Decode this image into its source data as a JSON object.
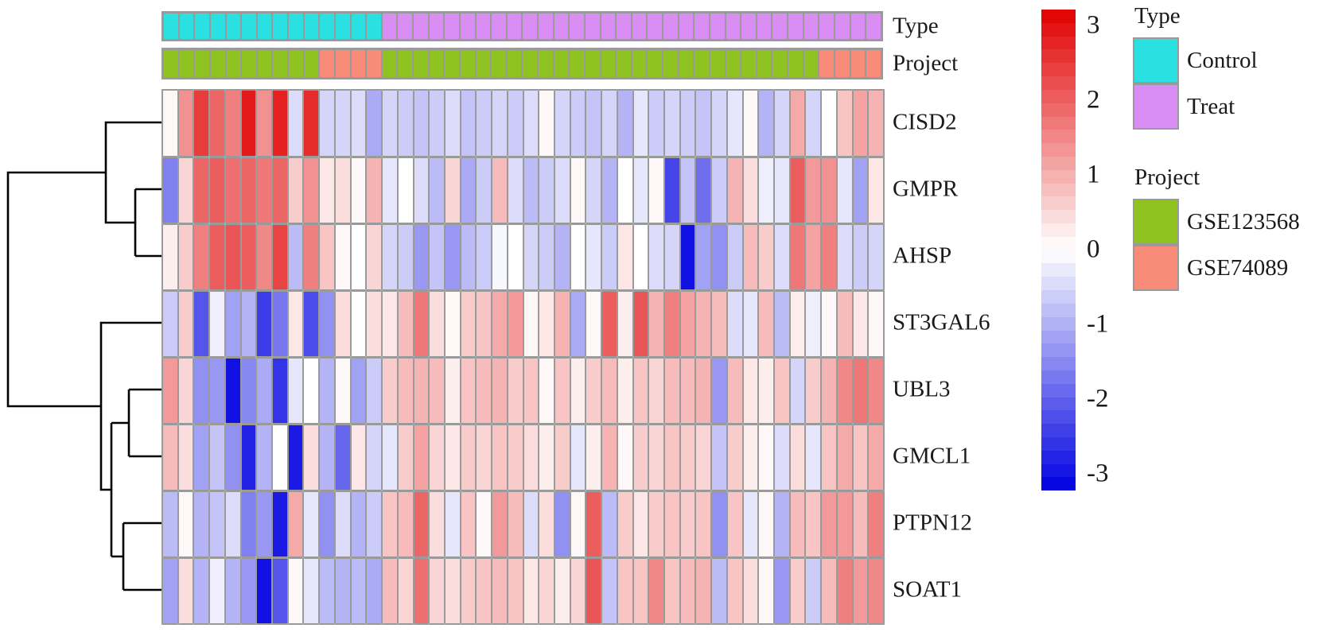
{
  "figure": {
    "annotation_row_labels": {
      "type": "Type",
      "project": "Project"
    },
    "legend": {
      "type_title": "Type",
      "type_items": [
        {
          "label": "Control",
          "color": "#2be0e0"
        },
        {
          "label": "Treat",
          "color": "#d98ef5"
        }
      ],
      "project_title": "Project",
      "project_items": [
        {
          "label": "GSE123568",
          "color": "#8fc31f"
        },
        {
          "label": "GSE74089",
          "color": "#f98c79"
        }
      ]
    }
  },
  "chart_data": {
    "type": "heatmap",
    "rows": [
      "CISD2",
      "GMPR",
      "AHSP",
      "ST3GAL6",
      "UBL3",
      "GMCL1",
      "PTPN12",
      "SOAT1"
    ],
    "n_columns": 46,
    "dendrogram": "left",
    "column_annotations": {
      "type_groups": [
        {
          "label": "Control",
          "count": 14
        },
        {
          "label": "Treat",
          "count": 32
        }
      ],
      "project_groups": [
        {
          "label": "GSE123568",
          "count": 10
        },
        {
          "label": "GSE74089",
          "count": 4
        },
        {
          "label": "GSE123568",
          "count": 28
        },
        {
          "label": "GSE74089",
          "count": 4
        }
      ]
    },
    "annotation_colors": {
      "Control": "#2be0e0",
      "Treat": "#d98ef5",
      "GSE123568": "#8fc31f",
      "GSE74089": "#f98c79"
    },
    "scale": {
      "min": -3,
      "max": 3,
      "low_color": "#0000e1",
      "mid_color": "#ffffff",
      "high_color": "#e10000",
      "ticks": [
        "3",
        "2",
        "1",
        "0",
        "-1",
        "-2",
        "-3"
      ],
      "steps": 36
    },
    "values": [
      [
        0.1,
        1.3,
        2.3,
        1.8,
        1.5,
        2.7,
        1.3,
        2.6,
        -0.4,
        2.5,
        -0.5,
        -0.5,
        -0.4,
        -1.0,
        -0.5,
        -0.6,
        -0.7,
        -0.6,
        -0.4,
        -0.7,
        -0.6,
        -0.5,
        -0.6,
        -0.4,
        0.1,
        -0.5,
        -0.6,
        -0.7,
        -0.5,
        -0.9,
        -0.3,
        -0.6,
        -0.5,
        -0.6,
        -0.7,
        -0.5,
        -0.3,
        0.1,
        -0.9,
        -0.5,
        1.0,
        -0.5,
        0.0,
        0.7,
        1.1,
        0.9
      ],
      [
        -1.5,
        0.5,
        1.8,
        1.9,
        1.7,
        1.8,
        1.6,
        1.8,
        0.6,
        1.3,
        0.3,
        0.4,
        0.1,
        0.9,
        -0.3,
        0.0,
        -0.4,
        -0.8,
        0.5,
        -1.0,
        -0.6,
        0.8,
        -0.4,
        -0.8,
        -0.6,
        -0.4,
        0.1,
        -0.5,
        -0.9,
        0.0,
        -0.3,
        0.1,
        -2.2,
        -0.7,
        -1.7,
        -0.6,
        0.9,
        0.4,
        -0.2,
        -0.3,
        1.9,
        1.2,
        1.3,
        -0.3,
        -1.1,
        0.3
      ],
      [
        0.2,
        0.6,
        1.5,
        1.9,
        2.0,
        1.9,
        1.4,
        2.2,
        -0.8,
        1.5,
        0.7,
        0.1,
        0.0,
        0.5,
        -0.5,
        -0.6,
        -1.2,
        -0.7,
        -1.2,
        -0.8,
        -0.6,
        -0.1,
        0.0,
        -0.5,
        -0.6,
        -0.9,
        0.0,
        -0.3,
        -0.6,
        0.3,
        0.0,
        -0.4,
        -0.5,
        -2.8,
        -1.1,
        -1.3,
        -0.6,
        0.8,
        0.6,
        -0.4,
        1.6,
        1.1,
        1.5,
        -0.4,
        -0.6,
        -0.5
      ],
      [
        -0.6,
        0.6,
        -2.0,
        -0.2,
        -1.1,
        -0.9,
        -2.3,
        -1.6,
        0.3,
        -2.1,
        -1.3,
        0.4,
        0.0,
        0.4,
        0.3,
        0.8,
        1.6,
        0.4,
        0.1,
        0.6,
        0.7,
        1.0,
        1.2,
        0.1,
        0.3,
        0.9,
        -1.0,
        0.1,
        1.9,
        0.2,
        2.0,
        0.9,
        1.5,
        1.1,
        0.9,
        0.8,
        -0.4,
        -0.3,
        0.8,
        -0.8,
        0.2,
        -0.2,
        0.1,
        0.8,
        0.3,
        0.1
      ],
      [
        1.2,
        0.5,
        -1.3,
        -1.2,
        -2.8,
        -1.4,
        -1.0,
        -2.4,
        -0.3,
        0.0,
        -0.9,
        0.1,
        -1.1,
        -0.6,
        0.6,
        0.8,
        0.9,
        0.8,
        0.2,
        0.7,
        0.8,
        0.9,
        0.6,
        0.7,
        0.1,
        0.7,
        0.2,
        0.6,
        0.8,
        0.2,
        0.7,
        0.5,
        0.8,
        0.8,
        0.9,
        -1.2,
        0.8,
        0.3,
        0.2,
        0.7,
        -0.5,
        0.6,
        0.9,
        1.4,
        1.6,
        1.4
      ],
      [
        0.8,
        0.4,
        -1.1,
        -0.7,
        -1.3,
        -2.6,
        -0.9,
        0.0,
        -2.7,
        0.4,
        -0.9,
        -1.8,
        0.3,
        -0.5,
        -0.3,
        0.6,
        1.1,
        0.5,
        0.3,
        0.6,
        0.5,
        0.7,
        0.6,
        0.4,
        0.2,
        0.6,
        -0.3,
        0.2,
        0.9,
        0.1,
        0.6,
        0.5,
        0.7,
        0.6,
        0.5,
        -0.7,
        0.6,
        0.2,
        0.1,
        -0.4,
        0.4,
        -0.3,
        0.7,
        1.0,
        0.7,
        1.0
      ],
      [
        -0.8,
        0.1,
        -0.9,
        -0.7,
        -0.4,
        -1.5,
        -1.2,
        -2.7,
        1.0,
        -0.3,
        -1.3,
        -0.4,
        -0.9,
        -0.6,
        0.7,
        0.8,
        1.8,
        0.4,
        -0.3,
        0.7,
        0.1,
        1.2,
        0.8,
        -0.4,
        0.4,
        -1.3,
        0.1,
        1.9,
        -0.8,
        0.6,
        0.3,
        0.6,
        0.7,
        0.6,
        0.7,
        -1.3,
        0.7,
        -0.3,
        0.1,
        -0.9,
        0.8,
        0.7,
        1.2,
        1.2,
        0.8,
        1.5
      ],
      [
        -1.1,
        0.4,
        -0.9,
        -0.2,
        -0.9,
        -1.2,
        -2.8,
        -2.0,
        0.1,
        -0.3,
        -0.8,
        -0.9,
        -0.8,
        -1.0,
        0.8,
        0.5,
        1.7,
        0.5,
        0.4,
        0.6,
        0.7,
        0.8,
        0.7,
        0.3,
        0.5,
        0.2,
        0.5,
        2.0,
        -0.7,
        0.7,
        0.7,
        1.4,
        0.7,
        0.8,
        0.9,
        -0.8,
        0.7,
        0.4,
        0.1,
        -1.2,
        0.6,
        -0.6,
        0.8,
        1.5,
        1.2,
        1.4
      ]
    ]
  }
}
